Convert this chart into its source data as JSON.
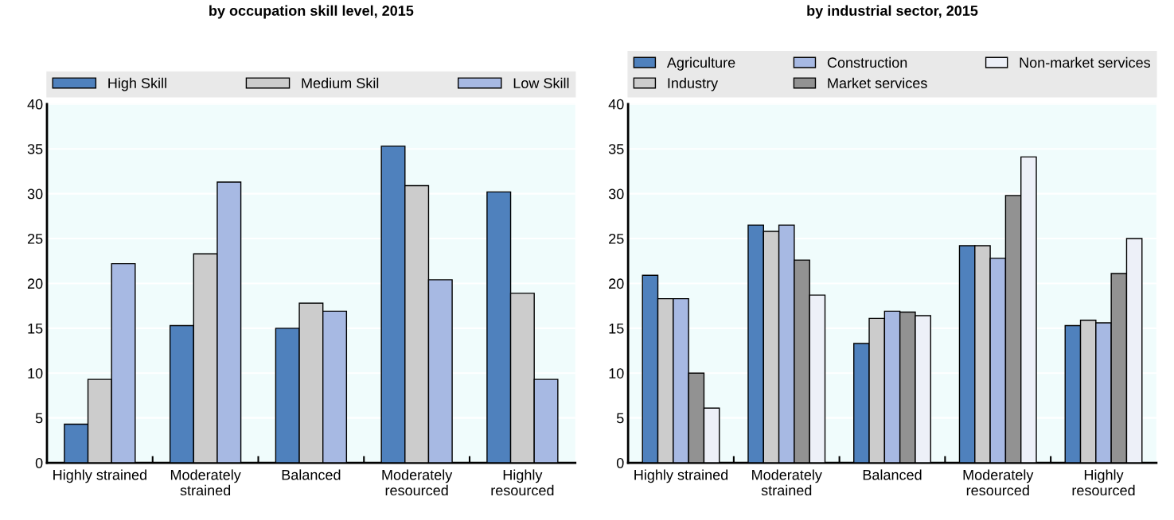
{
  "chart_data": [
    {
      "type": "bar",
      "title": "by occupation skill level, 2015",
      "categories": [
        "Highly strained",
        "Moderately\nstrained",
        "Balanced",
        "Moderately\nresourced",
        "Highly\nresourced"
      ],
      "series": [
        {
          "name": "High Skill",
          "color": "#4f81bd",
          "values": [
            4.3,
            15.3,
            15.0,
            35.3,
            30.2
          ]
        },
        {
          "name": "Medium Skil",
          "color": "#cccccc",
          "values": [
            9.3,
            23.3,
            17.8,
            30.9,
            18.9
          ]
        },
        {
          "name": "Low Skill",
          "color": "#a7b9e3",
          "values": [
            22.2,
            31.3,
            16.9,
            20.4,
            9.3
          ]
        }
      ],
      "ylim": [
        0,
        40
      ],
      "yticks": [
        0,
        5,
        10,
        15,
        20,
        25,
        30,
        35,
        40
      ],
      "grid": "y",
      "legend": "top"
    },
    {
      "type": "bar",
      "title": "by industrial sector, 2015",
      "categories": [
        "Highly strained",
        "Moderately\nstrained",
        "Balanced",
        "Moderately\nresourced",
        "Highly\nresourced"
      ],
      "series": [
        {
          "name": "Agriculture",
          "color": "#4f81bd",
          "values": [
            20.9,
            26.5,
            13.3,
            24.2,
            15.3
          ]
        },
        {
          "name": "Industry",
          "color": "#cccccc",
          "values": [
            18.3,
            25.8,
            16.1,
            24.2,
            15.9
          ]
        },
        {
          "name": "Construction",
          "color": "#a7b9e3",
          "values": [
            18.3,
            26.5,
            16.9,
            22.8,
            15.6
          ]
        },
        {
          "name": "Market services",
          "color": "#929292",
          "values": [
            10.0,
            22.6,
            16.8,
            29.8,
            21.1
          ]
        },
        {
          "name": "Non-market services",
          "color": "#edf0f8",
          "values": [
            6.1,
            18.7,
            16.4,
            34.1,
            25.0
          ]
        }
      ],
      "ylim": [
        0,
        40
      ],
      "yticks": [
        0,
        5,
        10,
        15,
        20,
        25,
        30,
        35,
        40
      ],
      "grid": "y",
      "legend": "top"
    }
  ]
}
